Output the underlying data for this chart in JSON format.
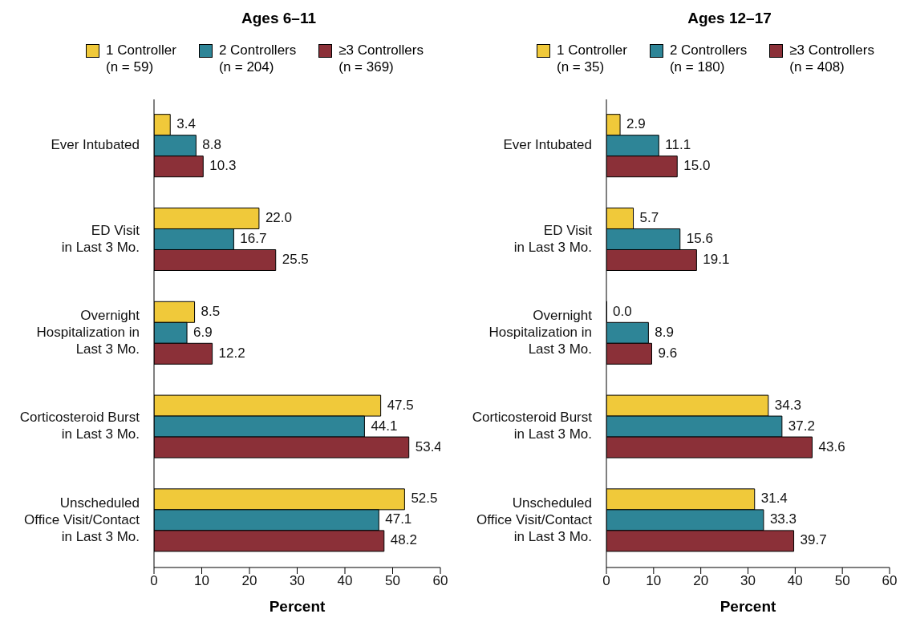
{
  "chart_data": [
    {
      "type": "bar",
      "orientation": "horizontal",
      "title": "Ages 6–11",
      "xlabel": "Percent",
      "categories": [
        "Ever Intubated",
        "ED Visit\nin Last 3 Mo.",
        "Overnight\nHospitalization in\nLast 3 Mo.",
        "Corticosteroid Burst\nin Last 3 Mo.",
        "Unscheduled\nOffice Visit/Contact\nin Last 3 Mo."
      ],
      "xlim": [
        0,
        60
      ],
      "xticks": [
        0,
        10,
        20,
        30,
        40,
        50,
        60
      ],
      "legend": "top",
      "grid": false,
      "series": [
        {
          "name": "1 Controller\n(n = 59)",
          "color": "#f0c93a",
          "values": [
            3.4,
            22.0,
            8.5,
            47.5,
            52.5
          ],
          "value_labels": [
            "3.4",
            "22.0",
            "8.5",
            "47.5",
            "52.5"
          ]
        },
        {
          "name": "2 Controllers\n(n = 204)",
          "color": "#2e8597",
          "values": [
            8.8,
            16.7,
            6.9,
            44.1,
            47.1
          ],
          "value_labels": [
            "8.8",
            "16.7",
            "6.9",
            "44.1",
            "47.1"
          ]
        },
        {
          "name": "≥3 Controllers\n(n = 369)",
          "color": "#8b3038",
          "values": [
            10.3,
            25.5,
            12.2,
            53.4,
            48.2
          ],
          "value_labels": [
            "10.3",
            "25.5",
            "12.2",
            "53.4",
            "48.2"
          ]
        }
      ]
    },
    {
      "type": "bar",
      "orientation": "horizontal",
      "title": "Ages 12–17",
      "xlabel": "Percent",
      "categories": [
        "Ever Intubated",
        "ED Visit\nin Last 3 Mo.",
        "Overnight\nHospitalization in\nLast 3 Mo.",
        "Corticosteroid Burst\nin Last 3 Mo.",
        "Unscheduled\nOffice Visit/Contact\nin Last 3 Mo."
      ],
      "xlim": [
        0,
        60
      ],
      "xticks": [
        0,
        10,
        20,
        30,
        40,
        50,
        60
      ],
      "legend": "top",
      "grid": false,
      "series": [
        {
          "name": "1 Controller\n(n = 35)",
          "color": "#f0c93a",
          "values": [
            2.9,
            5.7,
            0.0,
            34.3,
            31.4
          ],
          "value_labels": [
            "2.9",
            "5.7",
            "0.0",
            "34.3",
            "31.4"
          ]
        },
        {
          "name": "2 Controllers\n(n = 180)",
          "color": "#2e8597",
          "values": [
            11.1,
            15.6,
            8.9,
            37.2,
            33.3
          ],
          "value_labels": [
            "11.1",
            "15.6",
            "8.9",
            "37.2",
            "33.3"
          ]
        },
        {
          "name": "≥3 Controllers\n(n = 408)",
          "color": "#8b3038",
          "values": [
            15.0,
            19.1,
            9.6,
            43.6,
            39.7
          ],
          "value_labels": [
            "15.0",
            "19.1",
            "9.6",
            "43.6",
            "39.7"
          ]
        }
      ]
    }
  ]
}
